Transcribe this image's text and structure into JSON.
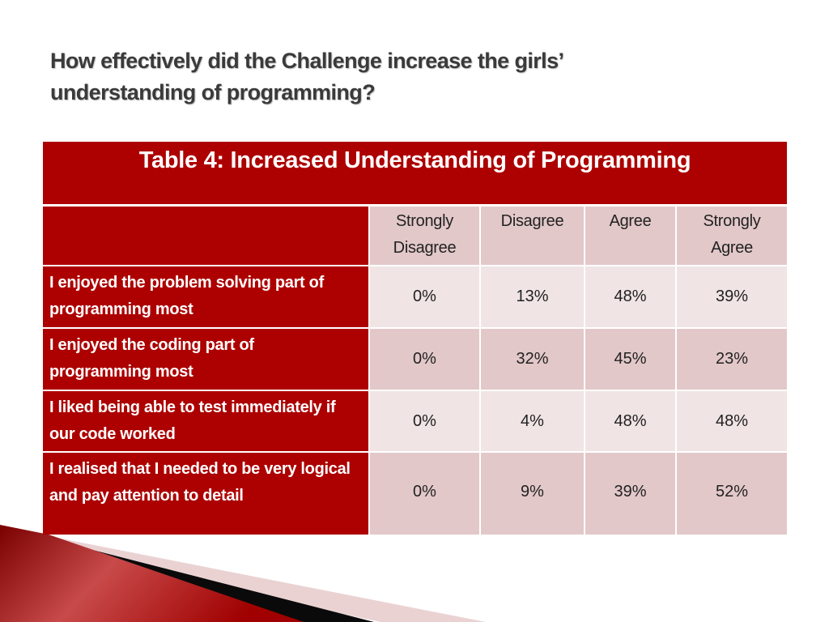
{
  "slide": {
    "title": "How effectively did the Challenge increase the girls’ understanding of programming?"
  },
  "table": {
    "caption": "Table 4: Increased Understanding of Programming",
    "columns": [
      "Strongly Disagree",
      "Disagree",
      "Agree",
      "Strongly Agree"
    ],
    "rows": [
      {
        "label": "I enjoyed the problem solving part of programming most",
        "values": [
          "0%",
          "13%",
          "48%",
          "39%"
        ]
      },
      {
        "label": "I enjoyed the coding part of programming most",
        "values": [
          "0%",
          "32%",
          "45%",
          "23%"
        ]
      },
      {
        "label": "I liked being able to test immediately if our code worked",
        "values": [
          "0%",
          "4%",
          "48%",
          "48%"
        ]
      },
      {
        "label": "I realised that I needed to be very logical and pay attention to detail",
        "values": [
          "0%",
          "9%",
          "39%",
          "52%"
        ]
      }
    ]
  },
  "colors": {
    "accent": "#ad0000",
    "header_fill": "#e3c8c9",
    "band_light": "#f0e4e4"
  }
}
